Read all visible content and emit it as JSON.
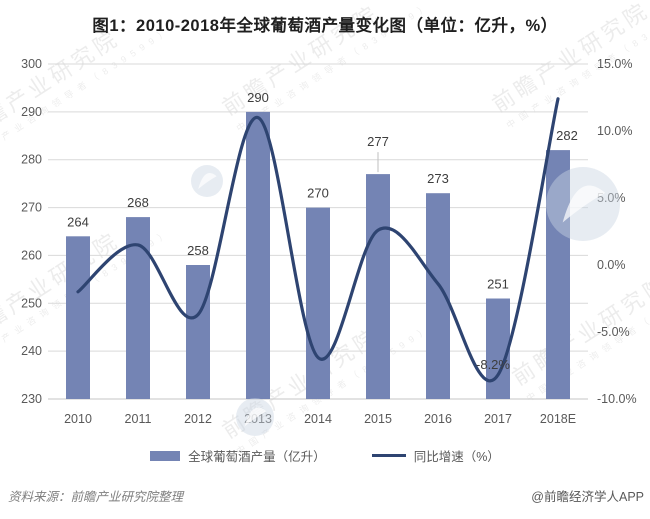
{
  "page": {
    "title": "图1：2010-2018年全球葡萄酒产量变化图（单位：亿升，%）",
    "source_note": "资料来源：前瞻产业研究院整理",
    "credit": "@前瞻经济学人APP"
  },
  "watermark": {
    "text": "前瞻产业研究院",
    "subtext": "中国产业咨询领导者（839599）"
  },
  "legend": {
    "bar_label": "全球葡萄酒产量（亿升）",
    "line_label": "同比增速（%）"
  },
  "colors": {
    "bar": "#7484B4",
    "line": "#2E4471",
    "grid": "#D9D9D9",
    "axis_line": "#C6C6C6",
    "axis_text": "#595959",
    "value_text": "#3D3D3D",
    "leader": "#BFBFBF",
    "logo": "#C9D4E2"
  },
  "chart_data": {
    "type": "bar",
    "title": "图1：2010-2018年全球葡萄酒产量变化图（单位：亿升，%）",
    "categories": [
      "2010",
      "2011",
      "2012",
      "2013",
      "2014",
      "2015",
      "2016",
      "2017",
      "2018E"
    ],
    "series": [
      {
        "name": "全球葡萄酒产量（亿升）",
        "type": "bar",
        "axis": "left",
        "values": [
          264,
          268,
          258,
          290,
          270,
          277,
          273,
          251,
          282
        ]
      },
      {
        "name": "同比增速（%）",
        "type": "line",
        "axis": "right",
        "values": [
          -2.0,
          1.5,
          -3.7,
          11.0,
          -6.9,
          2.6,
          -1.4,
          -8.2,
          12.4
        ]
      }
    ],
    "left_axis": {
      "min": 230,
      "max": 300,
      "step": 10,
      "tick_labels": [
        "300",
        "290",
        "280",
        "270",
        "260",
        "250",
        "240",
        "230"
      ]
    },
    "right_axis": {
      "min": -10,
      "max": 15,
      "step": 5,
      "tick_labels": [
        "15.0%",
        "10.0%",
        "5.0%",
        "0.0%",
        "-5.0%",
        "-10.0%"
      ],
      "format": "percent"
    },
    "annotations": [
      {
        "series": "同比增速（%）",
        "x_index": 7,
        "text": "-8.2%"
      }
    ],
    "value_labels": {
      "show": true,
      "leader_indices": [
        5
      ],
      "dx_overrides": {
        "8": 9
      }
    },
    "grid": true,
    "legend_position": "bottom"
  }
}
